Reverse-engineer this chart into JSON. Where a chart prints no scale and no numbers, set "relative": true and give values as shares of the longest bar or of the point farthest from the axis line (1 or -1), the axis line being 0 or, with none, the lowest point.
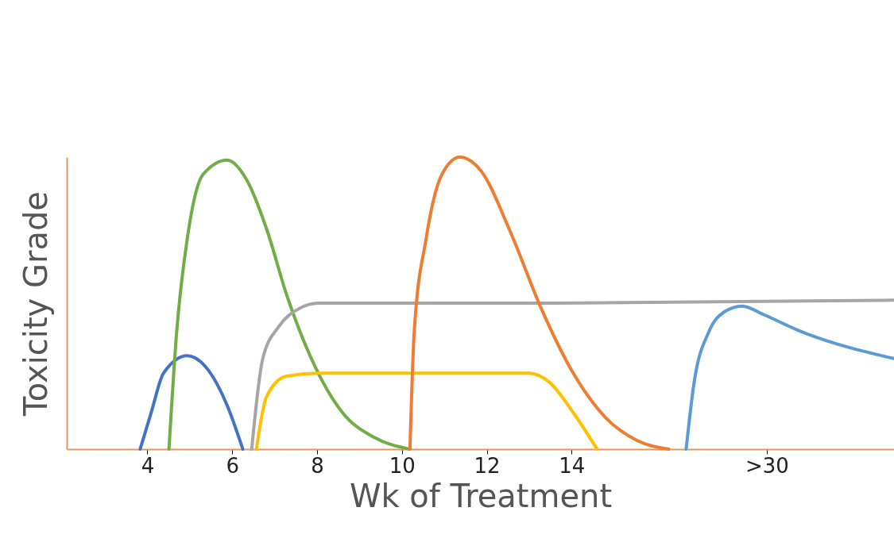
{
  "chart_data": {
    "type": "line",
    "xlabel": "Wk of Treatment",
    "ylabel": "Toxicity Grade",
    "relative": true,
    "xlim": [
      2.1,
      21.6
    ],
    "xticks": [
      4,
      6,
      8,
      10,
      12,
      14,
      {
        "value": 18.6,
        "label": ">30"
      }
    ],
    "line_style": "solid",
    "series": [
      {
        "color": "#4472c4",
        "x": [
          3.83,
          4.09,
          4.38,
          4.94,
          5.44,
          5.88,
          6.25
        ],
        "values": [
          0,
          0.125,
          0.26,
          0.32,
          0.27,
          0.15,
          0
        ]
      },
      {
        "color": "#70ad47",
        "x": [
          4.51,
          4.69,
          4.94,
          5.31,
          5.88,
          6.35,
          6.82,
          7.28,
          8.03,
          8.6,
          9.35,
          10.19
        ],
        "values": [
          0,
          0.4,
          0.72,
          0.94,
          0.99,
          0.92,
          0.75,
          0.53,
          0.26,
          0.125,
          0.04,
          0
        ]
      },
      {
        "color": "#a5a5a5",
        "x": [
          6.46,
          6.72,
          7.1,
          7.56,
          8.03,
          13.66,
          21.6
        ],
        "values": [
          0,
          0.31,
          0.42,
          0.48,
          0.5,
          0.5,
          0.51
        ]
      },
      {
        "color": "#ffc000",
        "x": [
          6.57,
          6.81,
          7.28,
          8.03,
          13.0,
          13.47,
          14.04,
          14.6
        ],
        "values": [
          0,
          0.18,
          0.25,
          0.26,
          0.26,
          0.23,
          0.125,
          0
        ]
      },
      {
        "color": "#ed7d31",
        "x": [
          10.19,
          10.29,
          10.57,
          10.94,
          11.37,
          11.88,
          12.54,
          13.29,
          14.04,
          14.79,
          15.54,
          16.29
        ],
        "values": [
          0,
          0.4,
          0.72,
          0.94,
          1,
          0.95,
          0.75,
          0.48,
          0.26,
          0.11,
          0.03,
          0
        ]
      },
      {
        "color": "#5b9bd5",
        "x": [
          16.7,
          16.89,
          17.23,
          17.6,
          18.02,
          18.54,
          19.29,
          21.6
        ],
        "values": [
          0,
          0.23,
          0.4,
          0.47,
          0.49,
          0.46,
          0.41,
          0.31
        ]
      }
    ]
  }
}
